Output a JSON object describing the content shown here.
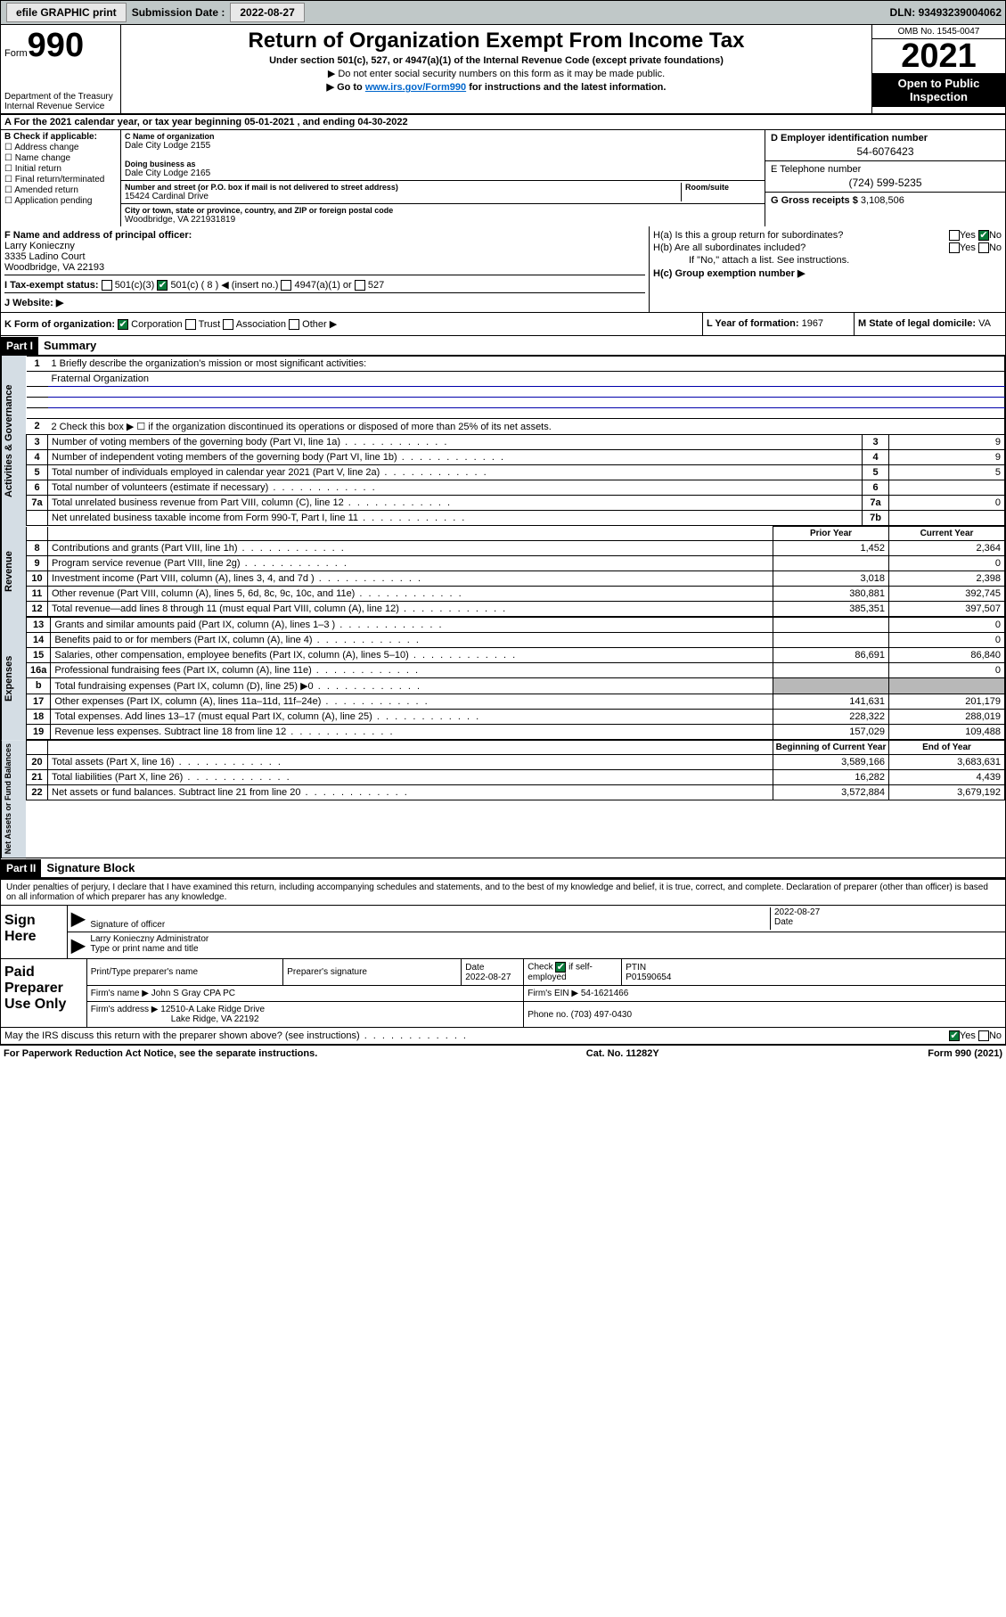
{
  "topbar": {
    "efile": "efile GRAPHIC print",
    "sub_label": "Submission Date :",
    "sub_date": "2022-08-27",
    "dln_label": "DLN:",
    "dln": "93493239004062"
  },
  "header": {
    "form_word": "Form",
    "form_no": "990",
    "dept": "Department of the Treasury\nInternal Revenue Service",
    "title": "Return of Organization Exempt From Income Tax",
    "subtitle": "Under section 501(c), 527, or 4947(a)(1) of the Internal Revenue Code (except private foundations)",
    "note1": "▶ Do not enter social security numbers on this form as it may be made public.",
    "note2": "▶ Go to www.irs.gov/Form990 for instructions and the latest information.",
    "omb": "OMB No. 1545-0047",
    "year": "2021",
    "public": "Open to Public Inspection"
  },
  "line_a": {
    "text": "A For the 2021 calendar year, or tax year beginning 05-01-2021  , and ending 04-30-2022"
  },
  "box_b": {
    "label": "B Check if applicable:",
    "opts": [
      "Address change",
      "Name change",
      "Initial return",
      "Final return/terminated",
      "Amended return",
      "Application pending"
    ]
  },
  "box_c": {
    "name_lbl": "C Name of organization",
    "name": "Dale City Lodge 2155",
    "dba_lbl": "Doing business as",
    "dba": "Dale City Lodge 2165",
    "addr_lbl": "Number and street (or P.O. box if mail is not delivered to street address)",
    "addr": "15424 Cardinal Drive",
    "room_lbl": "Room/suite",
    "city_lbl": "City or town, state or province, country, and ZIP or foreign postal code",
    "city": "Woodbridge, VA  221931819"
  },
  "box_d": {
    "lbl": "D Employer identification number",
    "val": "54-6076423"
  },
  "box_e": {
    "lbl": "E Telephone number",
    "val": "(724) 599-5235"
  },
  "box_g": {
    "lbl": "G Gross receipts $",
    "val": "3,108,506"
  },
  "box_f": {
    "lbl": "F Name and address of principal officer:",
    "name": "Larry Konieczny",
    "addr1": "3335 Ladino Court",
    "addr2": "Woodbridge, VA  22193"
  },
  "box_h": {
    "a": "H(a)  Is this a group return for subordinates?",
    "b": "H(b)  Are all subordinates included?",
    "b_note": "If \"No,\" attach a list. See instructions.",
    "c": "H(c)  Group exemption number ▶",
    "yes": "Yes",
    "no": "No"
  },
  "box_i": {
    "lbl": "I  Tax-exempt status:",
    "opts": [
      "501(c)(3)",
      "501(c) ( 8 ) ◀ (insert no.)",
      "4947(a)(1) or",
      "527"
    ]
  },
  "box_j": {
    "lbl": "J  Website: ▶"
  },
  "box_k": {
    "lbl": "K Form of organization:",
    "opts": [
      "Corporation",
      "Trust",
      "Association",
      "Other ▶"
    ]
  },
  "box_l": {
    "lbl": "L Year of formation:",
    "val": "1967"
  },
  "box_m": {
    "lbl": "M State of legal domicile:",
    "val": "VA"
  },
  "part1": {
    "tag": "Part I",
    "title": "Summary",
    "line1_lbl": "1  Briefly describe the organization's mission or most significant activities:",
    "line1_val": "Fraternal Organization",
    "line2": "2  Check this box ▶ ☐  if the organization discontinued its operations or disposed of more than 25% of its net assets.",
    "sidebar_ag": "Activities & Governance",
    "sidebar_rev": "Revenue",
    "sidebar_exp": "Expenses",
    "sidebar_net": "Net Assets or Fund Balances",
    "cols": {
      "prior": "Prior Year",
      "current": "Current Year",
      "begin": "Beginning of Current Year",
      "end": "End of Year"
    },
    "rows_gov": [
      {
        "n": "3",
        "d": "Number of voting members of the governing body (Part VI, line 1a)",
        "b": "3",
        "v": "9"
      },
      {
        "n": "4",
        "d": "Number of independent voting members of the governing body (Part VI, line 1b)",
        "b": "4",
        "v": "9"
      },
      {
        "n": "5",
        "d": "Total number of individuals employed in calendar year 2021 (Part V, line 2a)",
        "b": "5",
        "v": "5"
      },
      {
        "n": "6",
        "d": "Total number of volunteers (estimate if necessary)",
        "b": "6",
        "v": ""
      },
      {
        "n": "7a",
        "d": "Total unrelated business revenue from Part VIII, column (C), line 12",
        "b": "7a",
        "v": "0"
      },
      {
        "n": "",
        "d": "Net unrelated business taxable income from Form 990-T, Part I, line 11",
        "b": "7b",
        "v": ""
      }
    ],
    "rows_rev": [
      {
        "n": "8",
        "d": "Contributions and grants (Part VIII, line 1h)",
        "p": "1,452",
        "c": "2,364"
      },
      {
        "n": "9",
        "d": "Program service revenue (Part VIII, line 2g)",
        "p": "",
        "c": "0"
      },
      {
        "n": "10",
        "d": "Investment income (Part VIII, column (A), lines 3, 4, and 7d )",
        "p": "3,018",
        "c": "2,398"
      },
      {
        "n": "11",
        "d": "Other revenue (Part VIII, column (A), lines 5, 6d, 8c, 9c, 10c, and 11e)",
        "p": "380,881",
        "c": "392,745"
      },
      {
        "n": "12",
        "d": "Total revenue—add lines 8 through 11 (must equal Part VIII, column (A), line 12)",
        "p": "385,351",
        "c": "397,507"
      }
    ],
    "rows_exp": [
      {
        "n": "13",
        "d": "Grants and similar amounts paid (Part IX, column (A), lines 1–3 )",
        "p": "",
        "c": "0"
      },
      {
        "n": "14",
        "d": "Benefits paid to or for members (Part IX, column (A), line 4)",
        "p": "",
        "c": "0"
      },
      {
        "n": "15",
        "d": "Salaries, other compensation, employee benefits (Part IX, column (A), lines 5–10)",
        "p": "86,691",
        "c": "86,840"
      },
      {
        "n": "16a",
        "d": "Professional fundraising fees (Part IX, column (A), line 11e)",
        "p": "",
        "c": "0"
      },
      {
        "n": "b",
        "d": "Total fundraising expenses (Part IX, column (D), line 25) ▶0",
        "p": "grey",
        "c": "grey"
      },
      {
        "n": "17",
        "d": "Other expenses (Part IX, column (A), lines 11a–11d, 11f–24e)",
        "p": "141,631",
        "c": "201,179"
      },
      {
        "n": "18",
        "d": "Total expenses. Add lines 13–17 (must equal Part IX, column (A), line 25)",
        "p": "228,322",
        "c": "288,019"
      },
      {
        "n": "19",
        "d": "Revenue less expenses. Subtract line 18 from line 12",
        "p": "157,029",
        "c": "109,488"
      }
    ],
    "rows_net": [
      {
        "n": "20",
        "d": "Total assets (Part X, line 16)",
        "p": "3,589,166",
        "c": "3,683,631"
      },
      {
        "n": "21",
        "d": "Total liabilities (Part X, line 26)",
        "p": "16,282",
        "c": "4,439"
      },
      {
        "n": "22",
        "d": "Net assets or fund balances. Subtract line 21 from line 20",
        "p": "3,572,884",
        "c": "3,679,192"
      }
    ]
  },
  "part2": {
    "tag": "Part II",
    "title": "Signature Block"
  },
  "sig": {
    "decl": "Under penalties of perjury, I declare that I have examined this return, including accompanying schedules and statements, and to the best of my knowledge and belief, it is true, correct, and complete. Declaration of preparer (other than officer) is based on all information of which preparer has any knowledge.",
    "sign_here": "Sign Here",
    "sig_officer": "Signature of officer",
    "date_lbl": "Date",
    "date": "2022-08-27",
    "typed": "Larry Konieczny  Administrator",
    "typed_lbl": "Type or print name and title"
  },
  "paid": {
    "lbl": "Paid Preparer Use Only",
    "cols": [
      "Print/Type preparer's name",
      "Preparer's signature",
      "Date",
      "",
      "PTIN"
    ],
    "date": "2022-08-27",
    "check_lbl": "Check ☑ if self-employed",
    "ptin": "P01590654",
    "firm_name_lbl": "Firm's name  ▶",
    "firm_name": "John S Gray CPA PC",
    "firm_ein_lbl": "Firm's EIN ▶",
    "firm_ein": "54-1621466",
    "firm_addr_lbl": "Firm's address ▶",
    "firm_addr": "12510-A Lake Ridge Drive",
    "firm_city": "Lake Ridge, VA  22192",
    "phone_lbl": "Phone no.",
    "phone": "(703) 497-0430"
  },
  "discuss": {
    "q": "May the IRS discuss this return with the preparer shown above? (see instructions)",
    "yes": "Yes",
    "no": "No"
  },
  "footer": {
    "pra": "For Paperwork Reduction Act Notice, see the separate instructions.",
    "cat": "Cat. No. 11282Y",
    "form": "Form 990 (2021)"
  }
}
